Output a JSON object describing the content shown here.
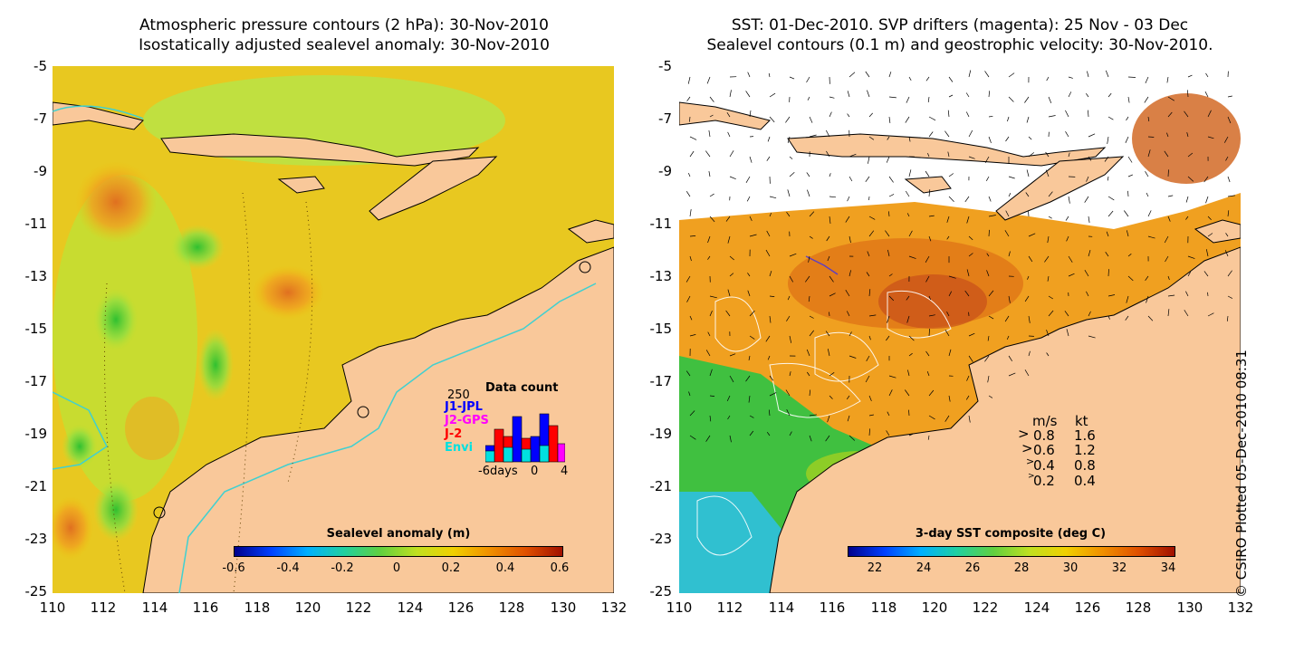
{
  "left_panel": {
    "title_line1": "Atmospheric pressure contours (2 hPa): 30-Nov-2010",
    "title_line2": "Isostatically adjusted sealevel anomaly: 30-Nov-2010",
    "colorbar_label": "Sealevel anomaly (m)",
    "colorbar_ticks": [
      "-0.6",
      "-0.4",
      "-0.2",
      "0",
      "0.2",
      "0.4",
      "0.6"
    ],
    "data_count": {
      "title": "Data count",
      "max_label": "250",
      "satellites": [
        {
          "name": "J1-JPL",
          "color": "#0000ff"
        },
        {
          "name": "J2-GPS",
          "color": "#ff00ff"
        },
        {
          "name": "J-2",
          "color": "#ff0000"
        },
        {
          "name": "Envi",
          "color": "#00e0e0"
        }
      ],
      "x_label_left": "-6days",
      "x_label_mid": "0",
      "x_label_right": "4"
    }
  },
  "right_panel": {
    "title_line1": "SST: 01-Dec-2010. SVP drifters (magenta): 25 Nov - 03 Dec",
    "title_line2": "Sealevel contours (0.1 m) and geostrophic velocity: 30-Nov-2010.",
    "colorbar_label": "3-day SST composite (deg C)",
    "colorbar_ticks": [
      "22",
      "24",
      "26",
      "28",
      "30",
      "32",
      "34"
    ],
    "velocity_legend": {
      "header_ms": "m/s",
      "header_kt": "kt",
      "rows": [
        {
          "ms": "0.8",
          "kt": "1.6"
        },
        {
          "ms": "0.6",
          "kt": "1.2"
        },
        {
          "ms": "0.4",
          "kt": "0.8"
        },
        {
          "ms": "0.2",
          "kt": "0.4"
        }
      ]
    },
    "credit": "© CSIRO Plotted 05-Dec-2010 08:31"
  },
  "axes": {
    "lat_ticks": [
      "-5",
      "-7",
      "-9",
      "-11",
      "-13",
      "-15",
      "-17",
      "-19",
      "-21",
      "-23",
      "-25"
    ],
    "lon_ticks": [
      "110",
      "112",
      "114",
      "116",
      "118",
      "120",
      "122",
      "124",
      "126",
      "128",
      "130",
      "132"
    ]
  },
  "colors": {
    "land": "#f9c89a",
    "ocean_yellow": "#f0c010",
    "ocean_green": "#a0e040",
    "sst_orange": "#e88010",
    "sst_red": "#c04010",
    "sst_green": "#20b040",
    "sst_cyan": "#20c0c0",
    "bathy_contour": "#40d0d0"
  }
}
